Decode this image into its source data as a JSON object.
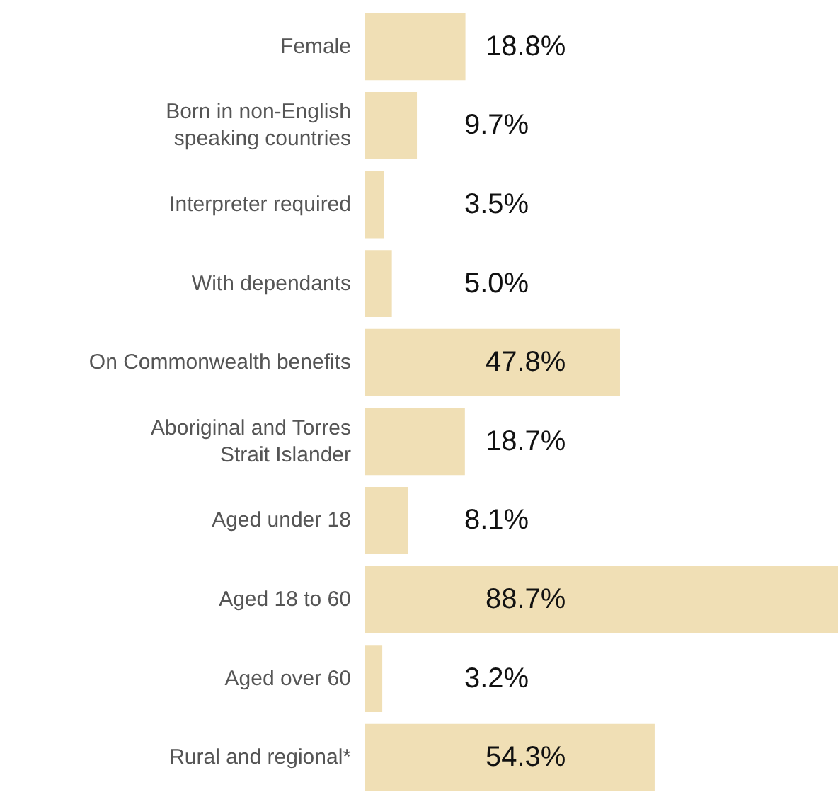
{
  "chart_data": {
    "type": "bar",
    "orientation": "horizontal",
    "data_labels": true,
    "categories": [
      "Female",
      "Born in non-English speaking countries",
      "Interpreter required",
      "With dependants",
      "On Commonwealth benefits",
      "Aboriginal and Torres Strait Islander",
      "Aged under 18",
      "Aged 18 to 60",
      "Aged over 60",
      "Rural and regional*"
    ],
    "values": [
      18.8,
      9.7,
      3.5,
      5.0,
      47.8,
      18.7,
      8.1,
      88.7,
      3.2,
      54.3
    ],
    "color": "#f0dfb5",
    "value_labels": [
      "18.8%",
      "9.7%",
      "3.5%",
      "5.0%",
      "47.8%",
      "18.7%",
      "8.1%",
      "88.7%",
      "3.2%",
      "54.3%"
    ]
  }
}
